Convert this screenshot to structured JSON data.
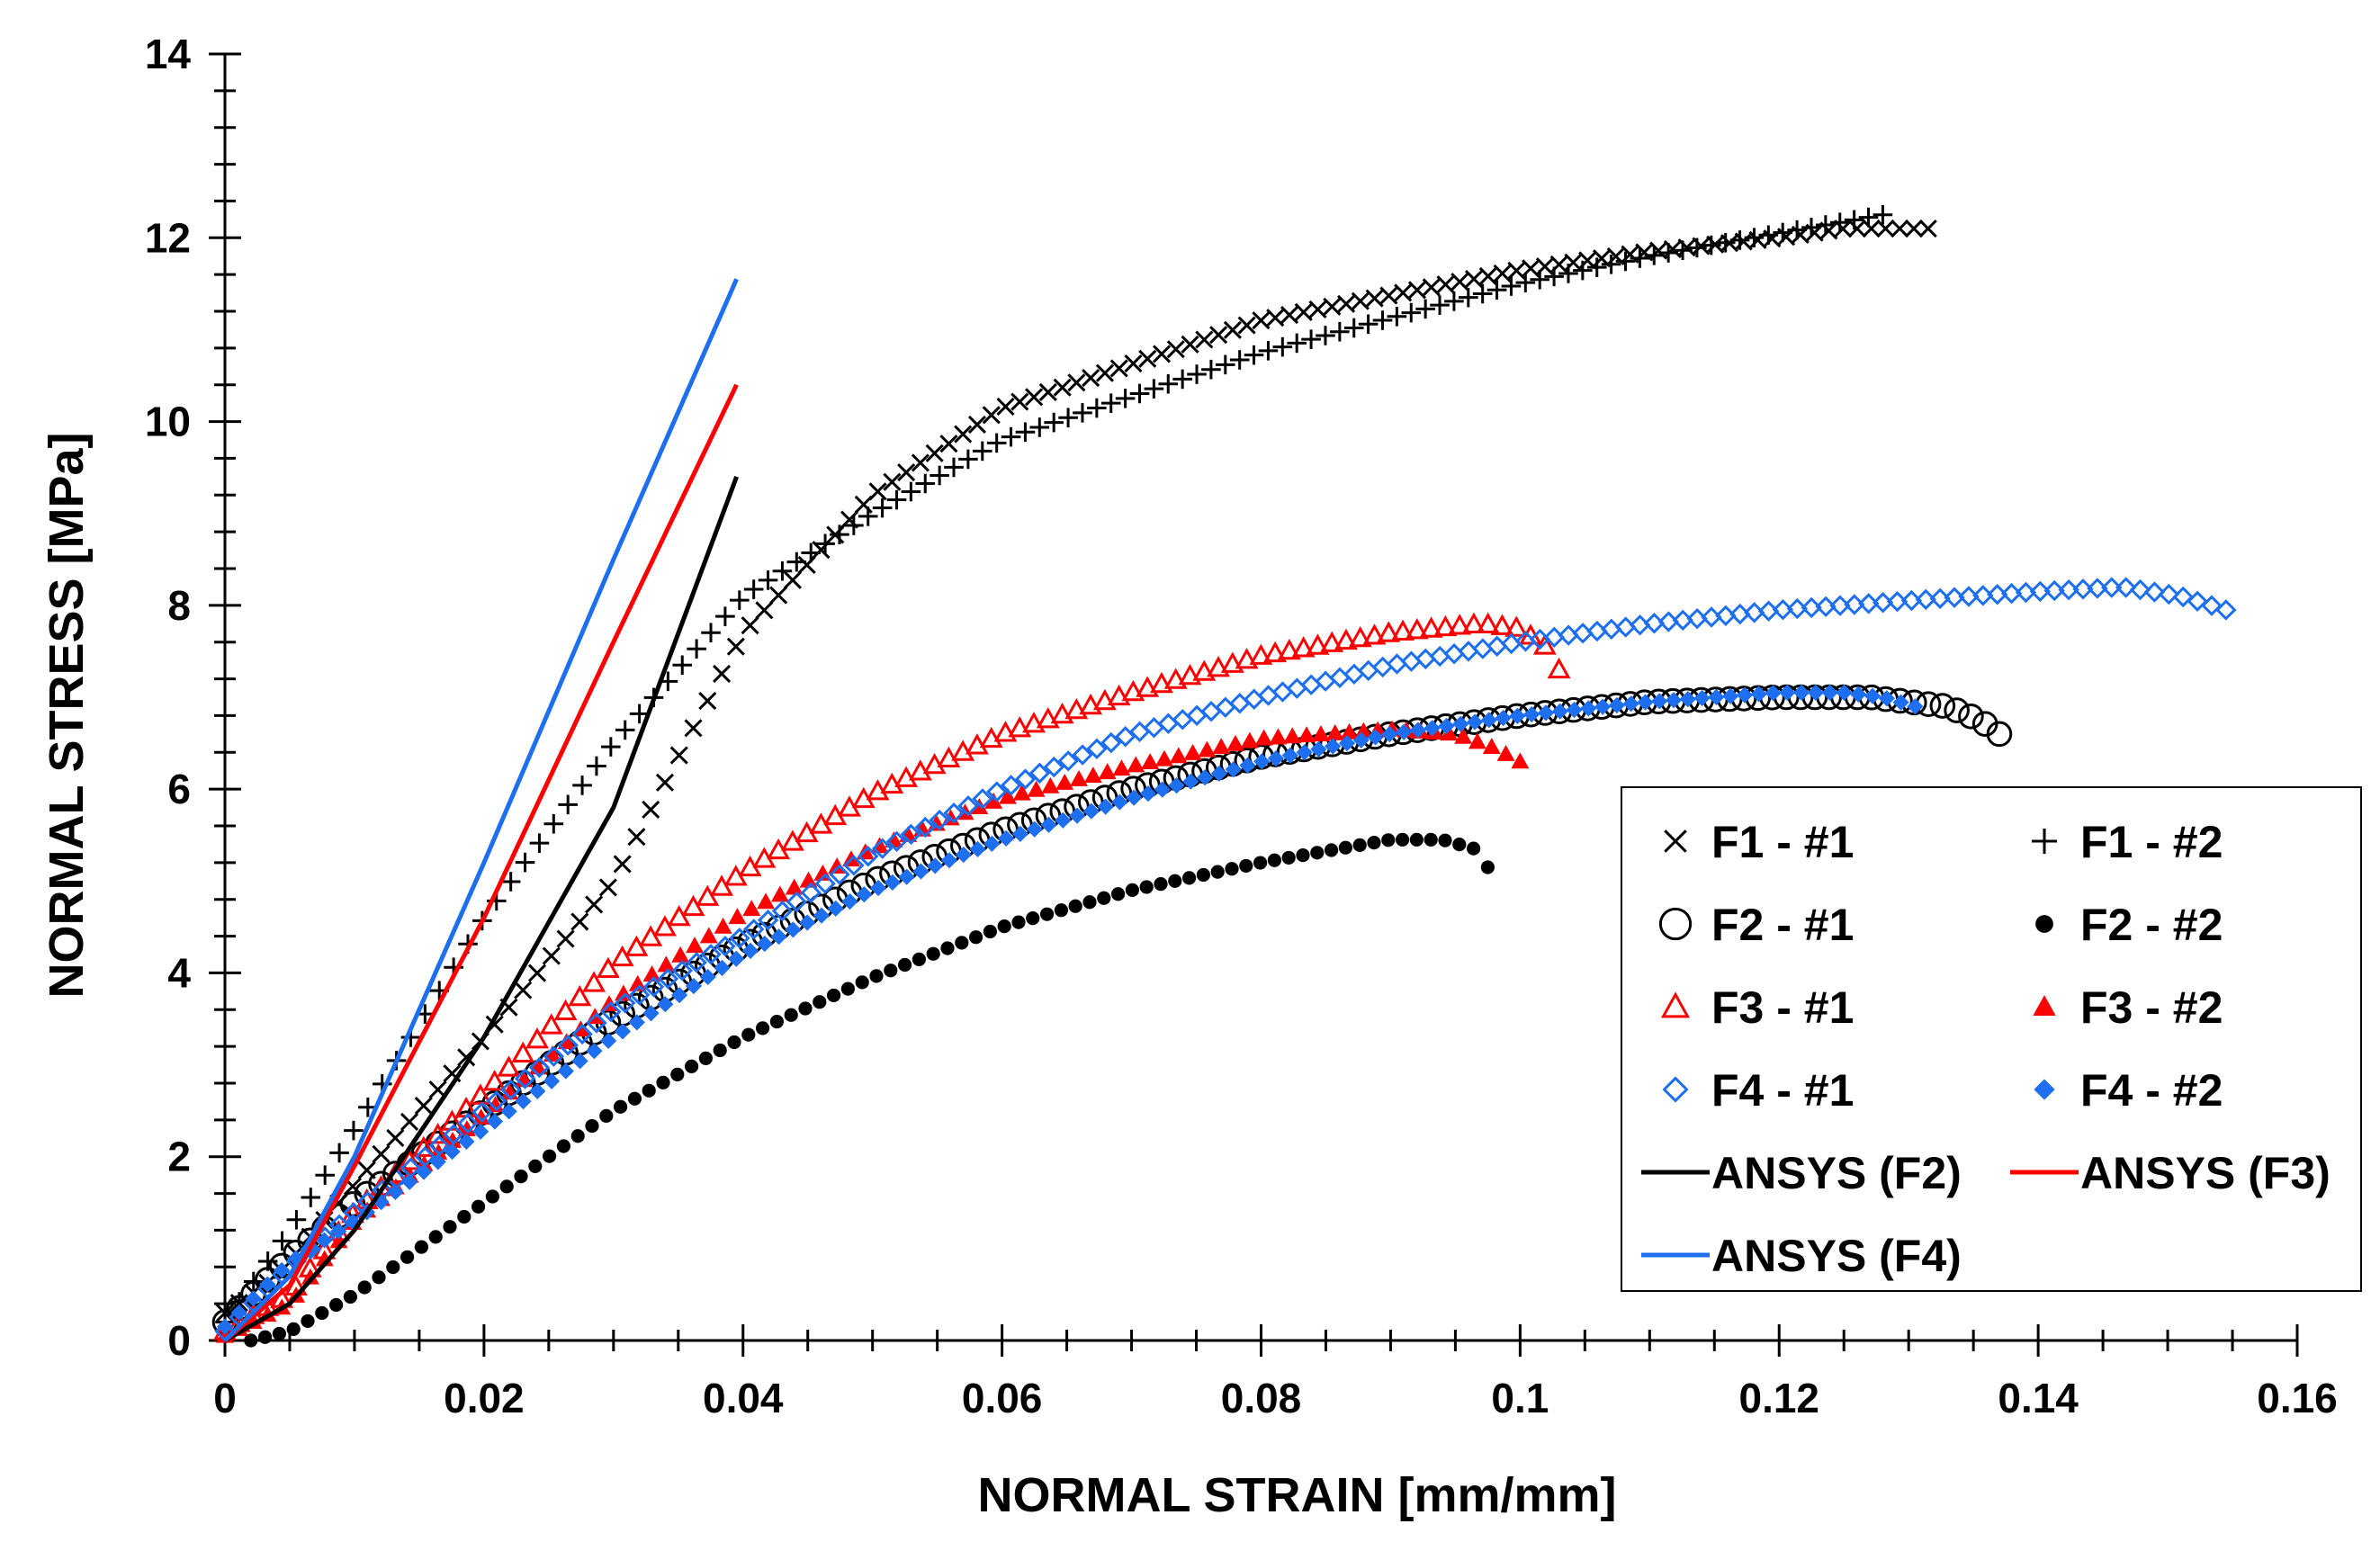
{
  "chart_data": {
    "type": "scatter",
    "title": "",
    "xlabel": "NORMAL STRAIN [mm/mm]",
    "ylabel": "NORMAL STRESS [MPa]",
    "xlim": [
      0,
      0.16
    ],
    "ylim": [
      0,
      14
    ],
    "xticks": [
      0,
      0.02,
      0.04,
      0.06,
      0.08,
      0.1,
      0.12,
      0.14,
      0.16
    ],
    "xtick_labels": [
      "0",
      "0.02",
      "0.04",
      "0.06",
      "0.08",
      "0.1",
      "0.12",
      "0.14",
      "0.16"
    ],
    "yticks": [
      0,
      2,
      4,
      6,
      8,
      10,
      12,
      14
    ],
    "ytick_labels": [
      "0",
      "2",
      "4",
      "6",
      "8",
      "10",
      "12",
      "14"
    ],
    "grid": false,
    "legend_position": "bottom-right",
    "series": [
      {
        "name": "F1 - #1",
        "marker": "x",
        "color": "#000000",
        "knots": [
          [
            0,
            0.3
          ],
          [
            0.004,
            0.7
          ],
          [
            0.01,
            1.7
          ],
          [
            0.02,
            3.3
          ],
          [
            0.03,
            5.0
          ],
          [
            0.04,
            7.7
          ],
          [
            0.05,
            9.2
          ],
          [
            0.06,
            10.15
          ],
          [
            0.08,
            11.1
          ],
          [
            0.1,
            11.65
          ],
          [
            0.11,
            11.85
          ],
          [
            0.12,
            12.0
          ],
          [
            0.125,
            12.1
          ],
          [
            0.128,
            12.1
          ],
          [
            0.1315,
            12.1
          ]
        ]
      },
      {
        "name": "F1 - #2",
        "marker": "plus",
        "color": "#000000",
        "knots": [
          [
            0,
            0.2
          ],
          [
            0.005,
            1.2
          ],
          [
            0.01,
            2.3
          ],
          [
            0.02,
            4.6
          ],
          [
            0.03,
            6.5
          ],
          [
            0.04,
            8.1
          ],
          [
            0.05,
            9.0
          ],
          [
            0.06,
            9.8
          ],
          [
            0.08,
            10.75
          ],
          [
            0.1,
            11.5
          ],
          [
            0.11,
            11.8
          ],
          [
            0.12,
            12.05
          ],
          [
            0.128,
            12.25
          ]
        ]
      },
      {
        "name": "F2 - #1",
        "marker": "circle",
        "color": "#000000",
        "knots": [
          [
            0,
            0.2
          ],
          [
            0.005,
            0.9
          ],
          [
            0.01,
            1.5
          ],
          [
            0.02,
            2.5
          ],
          [
            0.03,
            3.5
          ],
          [
            0.04,
            4.3
          ],
          [
            0.05,
            5.0
          ],
          [
            0.06,
            5.55
          ],
          [
            0.07,
            6.0
          ],
          [
            0.08,
            6.35
          ],
          [
            0.09,
            6.6
          ],
          [
            0.1,
            6.8
          ],
          [
            0.11,
            6.95
          ],
          [
            0.12,
            7.0
          ],
          [
            0.127,
            7.0
          ],
          [
            0.133,
            6.9
          ],
          [
            0.1355,
            6.75
          ],
          [
            0.137,
            6.6
          ]
        ]
      },
      {
        "name": "F2 - #2",
        "marker": "dot",
        "color": "#000000",
        "knots": [
          [
            0.002,
            0.0
          ],
          [
            0.005,
            0.1
          ],
          [
            0.01,
            0.5
          ],
          [
            0.02,
            1.5
          ],
          [
            0.03,
            2.5
          ],
          [
            0.04,
            3.3
          ],
          [
            0.05,
            3.95
          ],
          [
            0.06,
            4.5
          ],
          [
            0.07,
            4.9
          ],
          [
            0.08,
            5.2
          ],
          [
            0.09,
            5.45
          ],
          [
            0.094,
            5.45
          ],
          [
            0.0965,
            5.35
          ],
          [
            0.0975,
            5.15
          ]
        ]
      },
      {
        "name": "F3 - #1",
        "marker": "triangle-open",
        "color": "#ff0000",
        "knots": [
          [
            0,
            0.1
          ],
          [
            0.005,
            0.5
          ],
          [
            0.01,
            1.4
          ],
          [
            0.02,
            2.7
          ],
          [
            0.03,
            4.1
          ],
          [
            0.04,
            5.1
          ],
          [
            0.05,
            5.95
          ],
          [
            0.06,
            6.6
          ],
          [
            0.07,
            7.05
          ],
          [
            0.08,
            7.45
          ],
          [
            0.09,
            7.7
          ],
          [
            0.097,
            7.8
          ],
          [
            0.1,
            7.75
          ],
          [
            0.1025,
            7.5
          ],
          [
            0.103,
            7.3
          ]
        ]
      },
      {
        "name": "F3 - #2",
        "marker": "triangle-filled",
        "color": "#ff0000",
        "knots": [
          [
            0,
            0.05
          ],
          [
            0.005,
            0.4
          ],
          [
            0.01,
            1.3
          ],
          [
            0.02,
            2.45
          ],
          [
            0.03,
            3.7
          ],
          [
            0.04,
            4.65
          ],
          [
            0.05,
            5.35
          ],
          [
            0.06,
            5.9
          ],
          [
            0.07,
            6.25
          ],
          [
            0.08,
            6.55
          ],
          [
            0.09,
            6.65
          ],
          [
            0.095,
            6.6
          ],
          [
            0.098,
            6.45
          ],
          [
            0.1,
            6.3
          ]
        ]
      },
      {
        "name": "F4 - #1",
        "marker": "diamond-open",
        "color": "#1e6ff0",
        "knots": [
          [
            0,
            0.1
          ],
          [
            0.005,
            0.8
          ],
          [
            0.01,
            1.4
          ],
          [
            0.02,
            2.5
          ],
          [
            0.03,
            3.6
          ],
          [
            0.04,
            4.4
          ],
          [
            0.05,
            5.3
          ],
          [
            0.06,
            6.0
          ],
          [
            0.07,
            6.6
          ],
          [
            0.08,
            7.0
          ],
          [
            0.09,
            7.35
          ],
          [
            0.1,
            7.6
          ],
          [
            0.11,
            7.8
          ],
          [
            0.12,
            7.95
          ],
          [
            0.13,
            8.05
          ],
          [
            0.14,
            8.15
          ],
          [
            0.1465,
            8.2
          ],
          [
            0.151,
            8.1
          ],
          [
            0.1545,
            7.95
          ]
        ]
      },
      {
        "name": "F4 - #2",
        "marker": "diamond-filled",
        "color": "#1e6ff0",
        "knots": [
          [
            0,
            0.15
          ],
          [
            0.005,
            0.85
          ],
          [
            0.01,
            1.3
          ],
          [
            0.02,
            2.3
          ],
          [
            0.03,
            3.3
          ],
          [
            0.04,
            4.2
          ],
          [
            0.05,
            4.9
          ],
          [
            0.06,
            5.45
          ],
          [
            0.07,
            5.9
          ],
          [
            0.08,
            6.3
          ],
          [
            0.09,
            6.6
          ],
          [
            0.1,
            6.8
          ],
          [
            0.11,
            6.95
          ],
          [
            0.12,
            7.05
          ],
          [
            0.125,
            7.05
          ],
          [
            0.128,
            7.0
          ],
          [
            0.1305,
            6.9
          ]
        ]
      },
      {
        "name": "ANSYS (F2)",
        "marker": "line",
        "color": "#000000",
        "knots": [
          [
            0,
            0
          ],
          [
            0.005,
            0.4
          ],
          [
            0.01,
            1.2
          ],
          [
            0.02,
            3.3
          ],
          [
            0.03,
            5.8
          ],
          [
            0.0395,
            9.4
          ]
        ]
      },
      {
        "name": "ANSYS (F3)",
        "marker": "line",
        "color": "#ff0000",
        "knots": [
          [
            0,
            0
          ],
          [
            0.005,
            0.6
          ],
          [
            0.01,
            1.9
          ],
          [
            0.02,
            4.6
          ],
          [
            0.03,
            7.6
          ],
          [
            0.0395,
            10.4
          ]
        ]
      },
      {
        "name": "ANSYS (F4)",
        "marker": "line",
        "color": "#1e6ff0",
        "knots": [
          [
            0,
            0
          ],
          [
            0.005,
            0.7
          ],
          [
            0.01,
            2.0
          ],
          [
            0.02,
            5.2
          ],
          [
            0.03,
            8.5
          ],
          [
            0.0395,
            11.55
          ]
        ]
      }
    ]
  }
}
